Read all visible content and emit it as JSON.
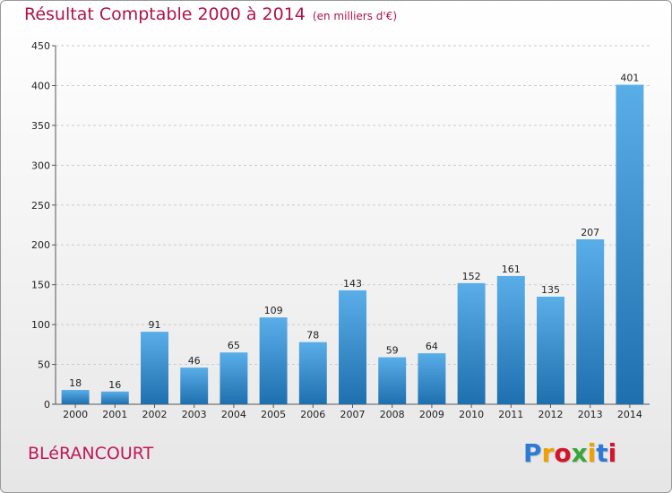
{
  "title": "Résultat Comptable 2000 à 2014",
  "subtitle": "(en milliers d'€)",
  "place": "BLéRANCOURT",
  "logo": {
    "letters": [
      "P",
      "r",
      "o",
      "x",
      "i",
      "t",
      "i"
    ],
    "colors": [
      "#2b7bd6",
      "#f0a000",
      "#d4142c",
      "#3aa63a",
      "#f0a000",
      "#2b7bd6",
      "#d4142c"
    ]
  },
  "colors": {
    "bar_top": "#5aaee8",
    "bar_bottom": "#1e6fae",
    "grid": "#cccccc"
  },
  "chart_data": {
    "type": "bar",
    "title": "Résultat Comptable 2000 à 2014",
    "subtitle": "(en milliers d'€)",
    "categories": [
      "2000",
      "2001",
      "2002",
      "2003",
      "2004",
      "2005",
      "2006",
      "2007",
      "2008",
      "2009",
      "2010",
      "2011",
      "2012",
      "2013",
      "2014"
    ],
    "values": [
      18,
      16,
      91,
      46,
      65,
      109,
      78,
      143,
      59,
      64,
      152,
      161,
      135,
      207,
      401
    ],
    "ylim": [
      0,
      450
    ],
    "yticks": [
      0,
      50,
      100,
      150,
      200,
      250,
      300,
      350,
      400,
      450
    ],
    "grid": true
  }
}
